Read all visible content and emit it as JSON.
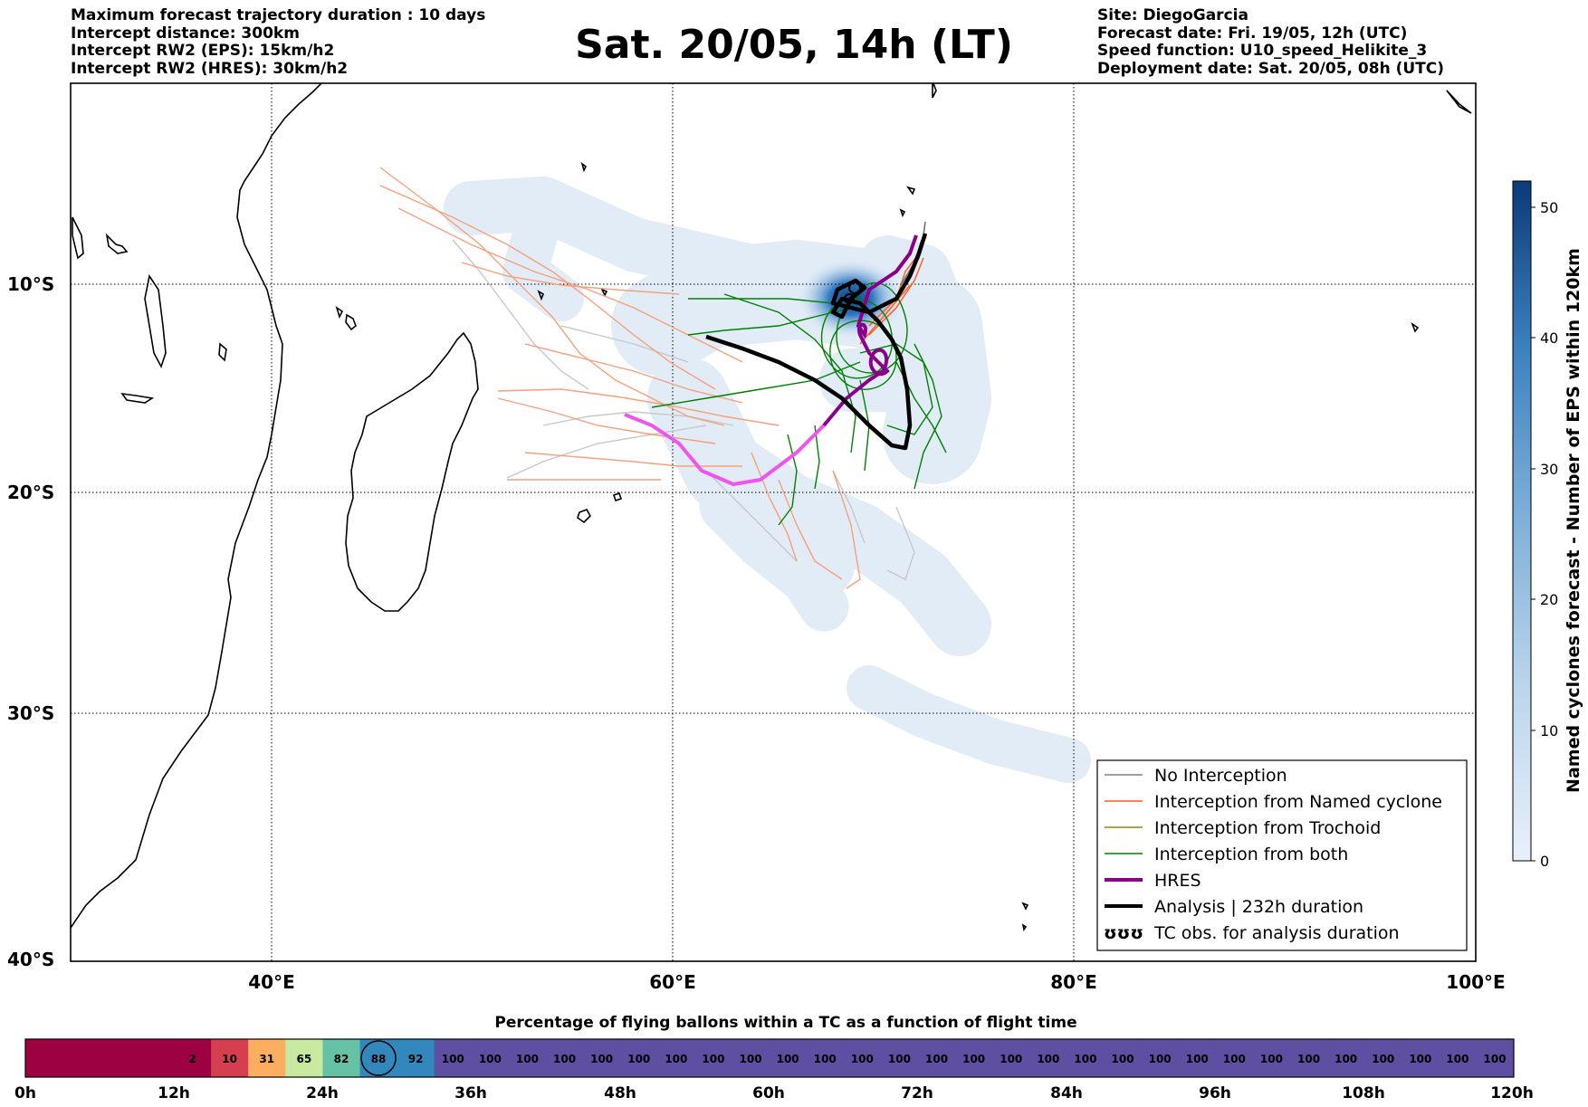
{
  "header_left": [
    "Maximum forecast trajectory duration : 10 days",
    "Intercept distance: 300km",
    "Intercept RW2 (EPS):  15km/h2",
    "Intercept RW2 (HRES): 30km/h2"
  ],
  "title": "Sat. 20/05, 14h (LT)",
  "header_right": [
    "Site: DiegoGarcia",
    "Forecast date: Fri. 19/05, 12h (UTC)",
    "Speed function: U10_speed_Helikite_3",
    "Deployment date: Sat. 20/05, 08h (UTC)"
  ],
  "map": {
    "lat_labels": [
      "10°S",
      "20°S",
      "30°S",
      "40°S"
    ],
    "lon_labels": [
      "40°E",
      "60°E",
      "80°E",
      "100°E"
    ],
    "lon_range": [
      30,
      100
    ],
    "lat_range": [
      -40,
      0
    ]
  },
  "colorbar": {
    "label": "Named cyclones forecast - Number of EPS within 120km",
    "ticks": [
      "0",
      "10",
      "20",
      "30",
      "40",
      "50"
    ],
    "range": [
      0,
      52
    ]
  },
  "legend": [
    {
      "label": "No Interception",
      "color": "#808080",
      "kind": "thin"
    },
    {
      "label": "Interception from Named cyclone",
      "color": "#ff5a1e",
      "kind": "thin"
    },
    {
      "label": "Interception from Trochoid",
      "color": "#8b8b00",
      "kind": "thin"
    },
    {
      "label": "Interception from both",
      "color": "#008000",
      "kind": "thin"
    },
    {
      "label": "HRES",
      "color": "#8b008b",
      "kind": "thick"
    },
    {
      "label": "Analysis | 232h duration",
      "color": "#000000",
      "kind": "thick"
    },
    {
      "label": "TC obs. for analysis duration",
      "color": "#000000",
      "kind": "symbol",
      "symbol": "ʊʊʊ"
    }
  ],
  "bottom": {
    "title": "Percentage of flying ballons within a TC as a function of flight time",
    "time_labels": [
      "0h",
      "12h",
      "24h",
      "36h",
      "48h",
      "60h",
      "72h",
      "84h",
      "96h",
      "108h",
      "120h"
    ],
    "values": [
      "2",
      "10",
      "31",
      "65",
      "82",
      "88",
      "92",
      "100",
      "100",
      "100",
      "100",
      "100",
      "100",
      "100",
      "100",
      "100",
      "100",
      "100",
      "100",
      "100",
      "100",
      "100",
      "100",
      "100",
      "100",
      "100",
      "100",
      "100",
      "100",
      "100",
      "100",
      "100",
      "100",
      "100",
      "100",
      "100"
    ],
    "highlight": "88",
    "colors": {
      "dark_red": "#9e0142",
      "red": "#d53e4f",
      "orange": "#fdae61",
      "light_green": "#c7e9a0",
      "teal": "#66c2a5",
      "blue": "#3288bd",
      "purple": "#5e4fa2"
    }
  }
}
